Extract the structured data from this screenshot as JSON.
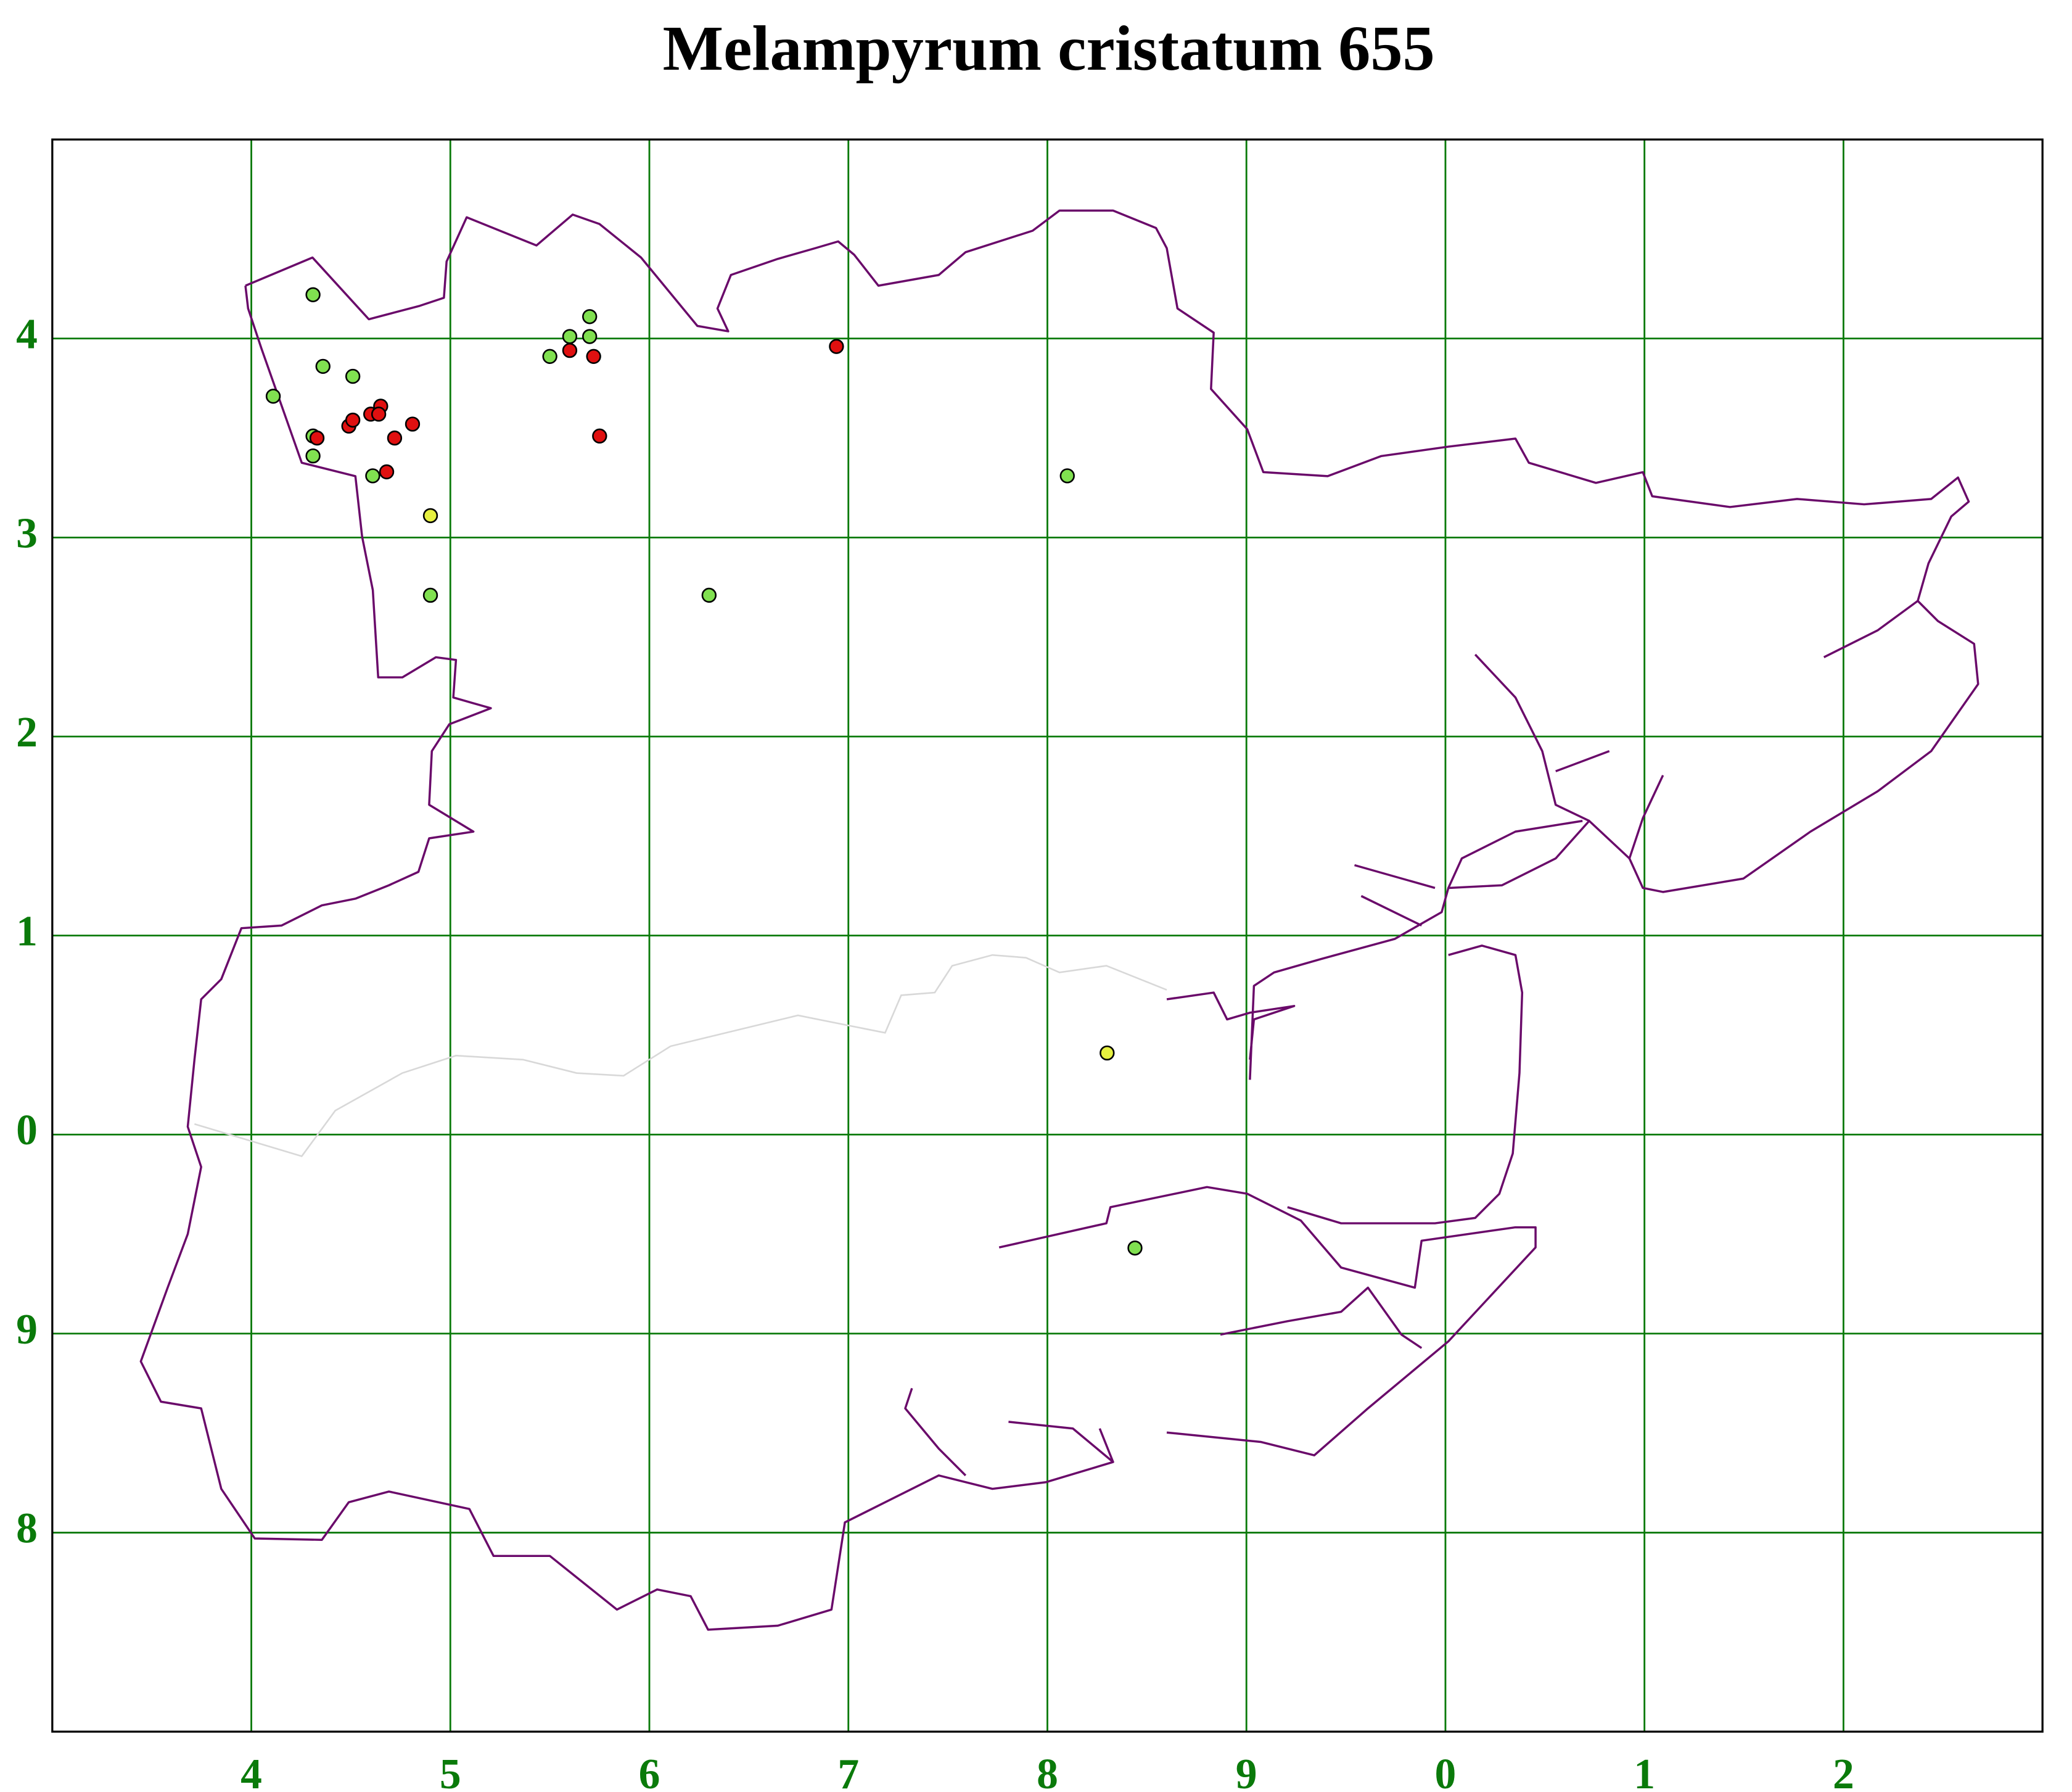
{
  "chart_data": {
    "type": "scatter",
    "title": "Melampyrum cristatum 655",
    "xlim": [
      3,
      13
    ],
    "ylim": [
      -3,
      5
    ],
    "xticks": [
      4,
      5,
      6,
      7,
      8,
      9,
      {
        "value": 10,
        "label": "0"
      },
      {
        "value": 11,
        "label": "1"
      },
      {
        "value": 12,
        "label": "2"
      }
    ],
    "yticks": [
      4,
      3,
      2,
      1,
      0,
      {
        "value": -1,
        "label": "9"
      },
      {
        "value": -2,
        "label": "8"
      }
    ],
    "grid": true,
    "series": [
      {
        "color": "#80e050",
        "x": [
          4.31,
          4.36,
          4.51,
          4.11,
          4.31,
          4.31,
          4.61,
          4.9,
          5.5,
          5.6,
          5.7,
          5.7,
          6.3,
          8.1,
          8.44
        ],
        "y": [
          4.22,
          3.86,
          3.81,
          3.71,
          3.51,
          3.41,
          3.31,
          2.71,
          3.91,
          4.01,
          4.11,
          4.01,
          2.71,
          3.31,
          -0.57
        ]
      },
      {
        "color": "#e6f040",
        "x": [
          4.9,
          8.3
        ],
        "y": [
          3.11,
          0.41
        ]
      },
      {
        "color": "#e01010",
        "x": [
          4.33,
          4.49,
          4.51,
          4.6,
          4.65,
          4.64,
          4.72,
          4.81,
          4.68,
          5.6,
          5.72,
          5.75,
          6.94
        ],
        "y": [
          3.5,
          3.56,
          3.59,
          3.62,
          3.66,
          3.62,
          3.5,
          3.57,
          3.33,
          3.94,
          3.91,
          3.51,
          3.96
        ]
      }
    ]
  }
}
